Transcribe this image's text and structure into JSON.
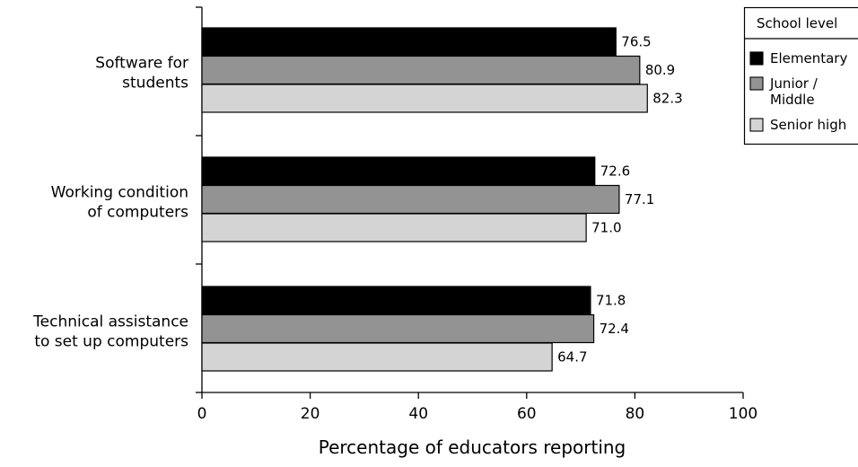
{
  "chart_data": {
    "type": "bar",
    "orientation": "horizontal",
    "categories": [
      [
        "Software for",
        "students"
      ],
      [
        "Working condition",
        "of computers"
      ],
      [
        "Technical assistance",
        "to set up computers"
      ]
    ],
    "series": [
      {
        "name": "Elementary",
        "color": "#000000",
        "values": [
          76.5,
          72.6,
          71.8
        ],
        "labels": [
          "76.5",
          "72.6",
          "71.8"
        ]
      },
      {
        "name": "Junior / Middle",
        "name_lines": [
          "Junior /",
          "Middle"
        ],
        "color": "#939393",
        "values": [
          80.9,
          77.1,
          72.4
        ],
        "labels": [
          "80.9",
          "77.1",
          "72.4"
        ]
      },
      {
        "name": "Senior high",
        "color": "#d4d4d4",
        "values": [
          82.3,
          71.0,
          64.7
        ],
        "labels": [
          "82.3",
          "71.0",
          "64.7"
        ]
      }
    ],
    "xlabel": "Percentage of educators reporting",
    "xlim": [
      0,
      100
    ],
    "xticks": [
      0,
      20,
      40,
      60,
      80,
      100
    ],
    "grid": false,
    "legend": {
      "title": "School level",
      "position": "top-right"
    }
  }
}
